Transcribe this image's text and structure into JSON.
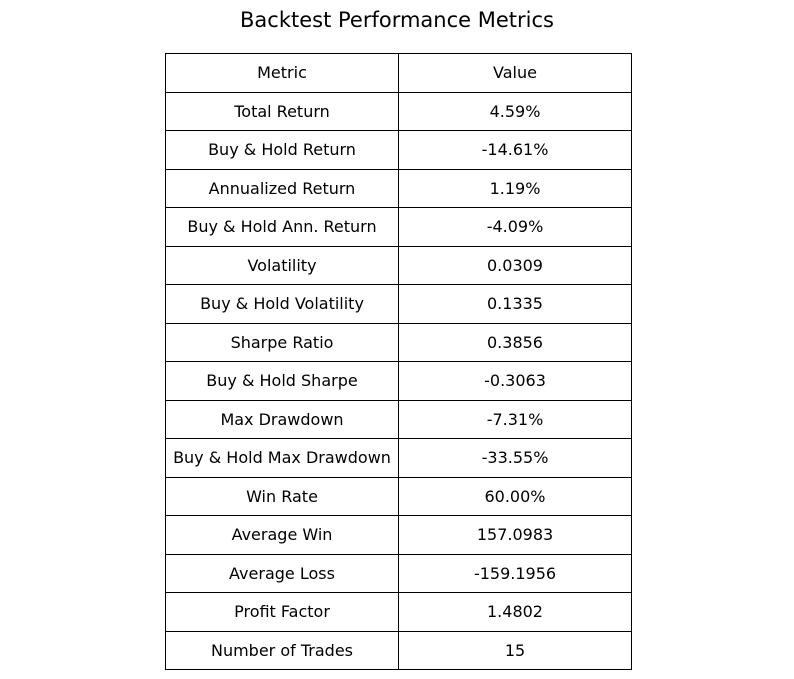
{
  "chart_data": {
    "type": "table",
    "title": "Backtest Performance Metrics",
    "columns": [
      "Metric",
      "Value"
    ],
    "rows": [
      [
        "Total Return",
        "4.59%"
      ],
      [
        "Buy & Hold Return",
        "-14.61%"
      ],
      [
        "Annualized Return",
        "1.19%"
      ],
      [
        "Buy & Hold Ann. Return",
        "-4.09%"
      ],
      [
        "Volatility",
        "0.0309"
      ],
      [
        "Buy & Hold Volatility",
        "0.1335"
      ],
      [
        "Sharpe Ratio",
        "0.3856"
      ],
      [
        "Buy & Hold Sharpe",
        "-0.3063"
      ],
      [
        "Max Drawdown",
        "-7.31%"
      ],
      [
        "Buy & Hold Max Drawdown",
        "-33.55%"
      ],
      [
        "Win Rate",
        "60.00%"
      ],
      [
        "Average Win",
        "157.0983"
      ],
      [
        "Average Loss",
        "-159.1956"
      ],
      [
        "Profit Factor",
        "1.4802"
      ],
      [
        "Number of Trades",
        "15"
      ]
    ],
    "colors": {
      "border": "#000000",
      "text": "#000000",
      "background": "#ffffff"
    }
  }
}
